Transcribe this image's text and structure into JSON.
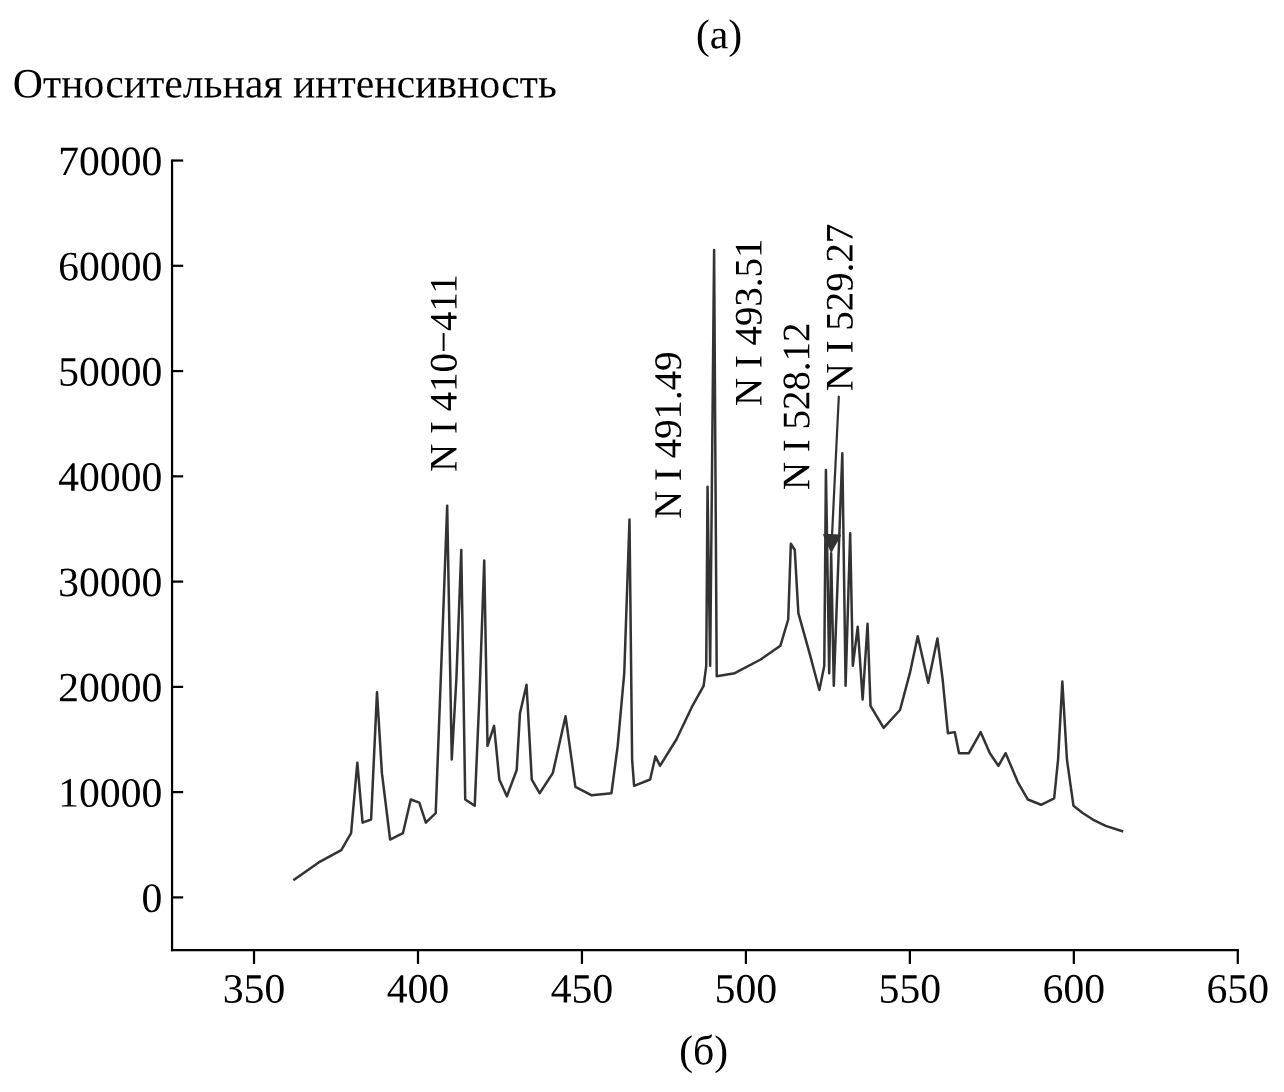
{
  "chart_data": {
    "type": "line",
    "title": "(a)",
    "ylabel": "Относительная интенсивность",
    "xlabel": "(б)",
    "xlim": [
      325,
      650
    ],
    "ylim": [
      -5000,
      70000
    ],
    "xticks": [
      350,
      400,
      450,
      500,
      550,
      600,
      650
    ],
    "yticks": [
      0,
      10000,
      20000,
      30000,
      40000,
      50000,
      60000,
      70000
    ],
    "grid": false,
    "legend": false,
    "marker": "none",
    "line_style": "solid",
    "series": [
      {
        "color": "#333333",
        "x": [
          362.3,
          369.6,
          376.6,
          379.6,
          381.5,
          383.1,
          385.7,
          387.5,
          389.0,
          391.5,
          395.4,
          397.8,
          400.4,
          402.4,
          405.4,
          407.7,
          408.9,
          410.3,
          411.7,
          413.2,
          414.4,
          417.3,
          418.8,
          420.2,
          421.2,
          423.2,
          424.8,
          427.1,
          430.1,
          431.1,
          433.1,
          434.7,
          437.1,
          441.1,
          445.0,
          448.0,
          453.0,
          459.0,
          460.9,
          462.9,
          464.5,
          465.3,
          465.9,
          470.8,
          472.4,
          473.8,
          478.8,
          483.7,
          487.1,
          487.9,
          488.3,
          489.1,
          490.3,
          491.1,
          496.6,
          504.5,
          510.5,
          512.9,
          513.7,
          514.9,
          516.0,
          519.4,
          522.4,
          523.9,
          524.4,
          525.4,
          526.0,
          526.8,
          529.4,
          530.4,
          531.8,
          532.6,
          534.1,
          535.6,
          537.1,
          538.0,
          542.0,
          547.0,
          550.0,
          552.4,
          555.6,
          558.4,
          560.0,
          561.6,
          563.7,
          565.0,
          568.0,
          571.6,
          574.4,
          577.0,
          579.2,
          583.0,
          586.0,
          590.0,
          594.0,
          595.2,
          596.5,
          597.9,
          599.9,
          602.8,
          605.8,
          609.7,
          614.7
        ],
        "values": [
          1700,
          3300,
          4500,
          6100,
          12800,
          7100,
          7400,
          19500,
          11800,
          5500,
          6100,
          9300,
          9000,
          7100,
          8000,
          27000,
          37200,
          13100,
          20700,
          33000,
          9300,
          8700,
          19600,
          32000,
          14400,
          16300,
          11200,
          9600,
          12100,
          17500,
          20200,
          11200,
          9900,
          11800,
          17200,
          10500,
          9700,
          9900,
          14400,
          21300,
          35900,
          13100,
          10600,
          11200,
          13400,
          12500,
          15000,
          18200,
          20100,
          22000,
          39000,
          22000,
          61500,
          21000,
          21300,
          22600,
          23900,
          26400,
          33600,
          33000,
          27000,
          23200,
          19700,
          22000,
          40600,
          21300,
          32700,
          20100,
          42200,
          20100,
          34600,
          22000,
          25700,
          18800,
          26000,
          18200,
          16100,
          17800,
          21300,
          24800,
          20400,
          24600,
          20700,
          15600,
          15700,
          13700,
          13700,
          15700,
          13700,
          12500,
          13700,
          10900,
          9300,
          8800,
          9400,
          13100,
          20500,
          13100,
          8700,
          8000,
          7400,
          6800,
          6300
        ]
      }
    ],
    "annotations": [
      {
        "text": "N I 410−411",
        "x": 408.9,
        "y": 37200
      },
      {
        "text": "N I 491.49",
        "x": 488.3,
        "y": 39000
      },
      {
        "text": "N I 493.51",
        "x": 490.3,
        "y": 61500
      },
      {
        "text": "N I 528.12",
        "x": 524.4,
        "y": 40600
      },
      {
        "text": "N I 529.27",
        "x": 526.0,
        "y": 32700
      }
    ]
  }
}
